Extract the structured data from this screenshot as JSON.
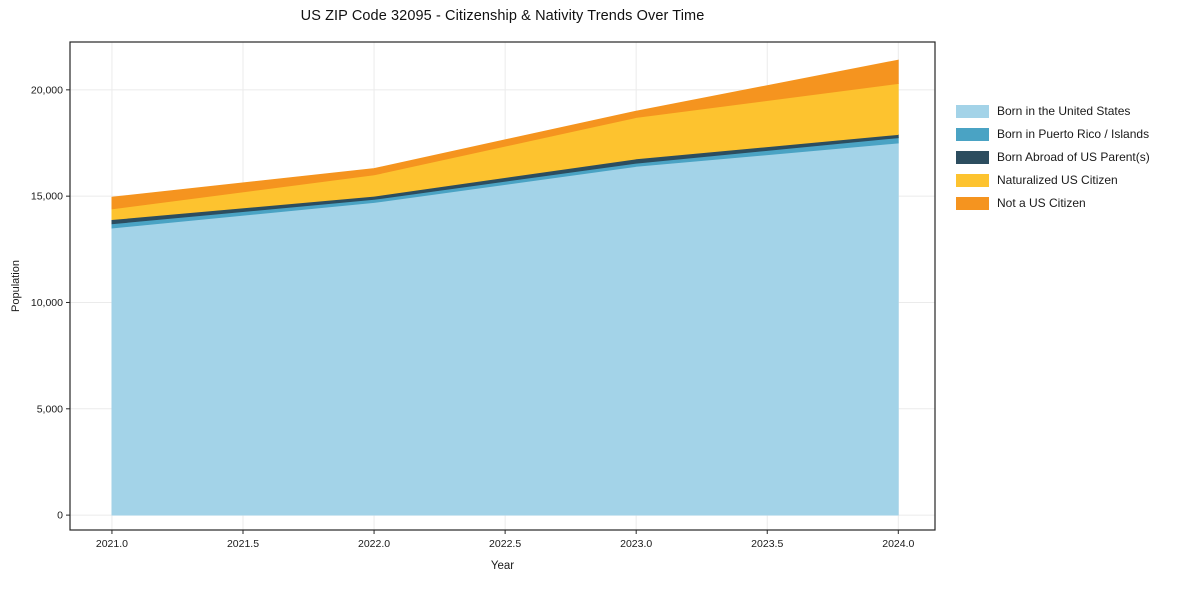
{
  "chart_data": {
    "type": "area",
    "title": "US ZIP Code 32095 - Citizenship & Nativity Trends Over Time",
    "xlabel": "Year",
    "ylabel": "Population",
    "x": [
      2021,
      2022,
      2023,
      2024
    ],
    "series": [
      {
        "name": "Born in the United States",
        "color": "#a3d3e8",
        "values": [
          13500,
          14700,
          16400,
          17500
        ]
      },
      {
        "name": "Born in Puerto Rico / Islands",
        "color": "#4aa3c4",
        "values": [
          200,
          150,
          150,
          250
        ]
      },
      {
        "name": "Born Abroad of US Parent(s)",
        "color": "#2c4d5f",
        "values": [
          200,
          150,
          200,
          150
        ]
      },
      {
        "name": "Naturalized US Citizen",
        "color": "#fdc32f",
        "values": [
          500,
          1000,
          1950,
          2400
        ]
      },
      {
        "name": "Not a US Citizen",
        "color": "#f5941f",
        "values": [
          550,
          300,
          300,
          1100
        ]
      }
    ],
    "stacked_totals": [
      14950,
      16300,
      19000,
      21400
    ],
    "xlim": [
      2020.84,
      2024.14
    ],
    "ylim": [
      -700,
      22250
    ],
    "x_ticks": {
      "values": [
        2021.0,
        2021.5,
        2022.0,
        2022.5,
        2023.0,
        2023.5,
        2024.0
      ],
      "labels": [
        "2021.0",
        "2021.5",
        "2022.0",
        "2022.5",
        "2023.0",
        "2023.5",
        "2024.0"
      ]
    },
    "y_ticks": {
      "values": [
        0,
        5000,
        10000,
        15000,
        20000
      ],
      "labels": [
        "0",
        "5,000",
        "10,000",
        "15,000",
        "20,000"
      ]
    },
    "grid": true,
    "grid_color": "#ebebeb",
    "frame_color": "#262626",
    "legend_position": "right-outside"
  }
}
